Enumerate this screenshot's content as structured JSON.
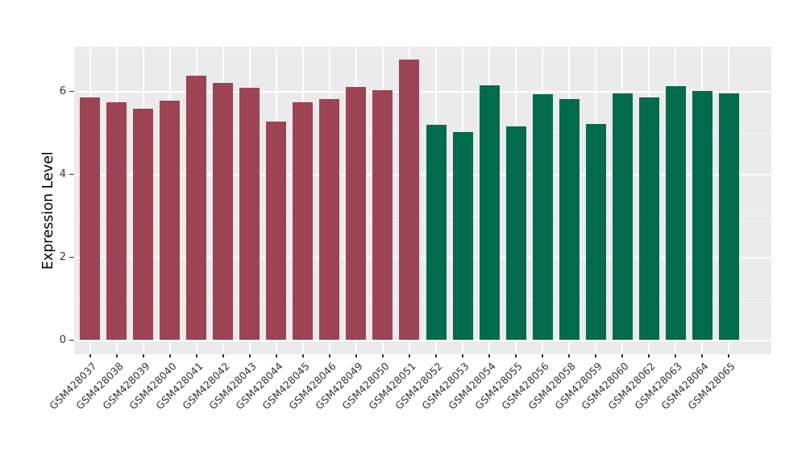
{
  "chart_data": {
    "type": "bar",
    "title": "",
    "xlabel": "",
    "ylabel": "Expression Level",
    "ylim": [
      0,
      7.1
    ],
    "yticks": [
      0,
      2,
      4,
      6
    ],
    "yticks_minor": [
      1,
      3,
      5,
      7
    ],
    "grid": "on",
    "legend_position": "none",
    "panel_background": "#EBEBEB",
    "gridline_color": "#FFFFFF",
    "group_colors": {
      "group1": "#9C4453",
      "group2": "#026B4B"
    },
    "bars": [
      {
        "label": "GSM428037",
        "value": 5.85,
        "group": "group1"
      },
      {
        "label": "GSM428038",
        "value": 5.73,
        "group": "group1"
      },
      {
        "label": "GSM428039",
        "value": 5.58,
        "group": "group1"
      },
      {
        "label": "GSM428040",
        "value": 5.78,
        "group": "group1"
      },
      {
        "label": "GSM428041",
        "value": 6.37,
        "group": "group1"
      },
      {
        "label": "GSM428042",
        "value": 6.2,
        "group": "group1"
      },
      {
        "label": "GSM428043",
        "value": 6.09,
        "group": "group1"
      },
      {
        "label": "GSM428044",
        "value": 5.28,
        "group": "group1"
      },
      {
        "label": "GSM428045",
        "value": 5.74,
        "group": "group1"
      },
      {
        "label": "GSM428046",
        "value": 5.82,
        "group": "group1"
      },
      {
        "label": "GSM428049",
        "value": 6.11,
        "group": "group1"
      },
      {
        "label": "GSM428050",
        "value": 6.03,
        "group": "group1"
      },
      {
        "label": "GSM428051",
        "value": 6.77,
        "group": "group1"
      },
      {
        "label": "GSM428052",
        "value": 5.2,
        "group": "group2"
      },
      {
        "label": "GSM428053",
        "value": 5.02,
        "group": "group2"
      },
      {
        "label": "GSM428054",
        "value": 6.15,
        "group": "group2"
      },
      {
        "label": "GSM428055",
        "value": 5.15,
        "group": "group2"
      },
      {
        "label": "GSM428056",
        "value": 5.93,
        "group": "group2"
      },
      {
        "label": "GSM428058",
        "value": 5.82,
        "group": "group2"
      },
      {
        "label": "GSM428059",
        "value": 5.22,
        "group": "group2"
      },
      {
        "label": "GSM428060",
        "value": 5.95,
        "group": "group2"
      },
      {
        "label": "GSM428062",
        "value": 5.86,
        "group": "group2"
      },
      {
        "label": "GSM428063",
        "value": 6.12,
        "group": "group2"
      },
      {
        "label": "GSM428064",
        "value": 6.01,
        "group": "group2"
      },
      {
        "label": "GSM428065",
        "value": 5.96,
        "group": "group2"
      }
    ]
  }
}
